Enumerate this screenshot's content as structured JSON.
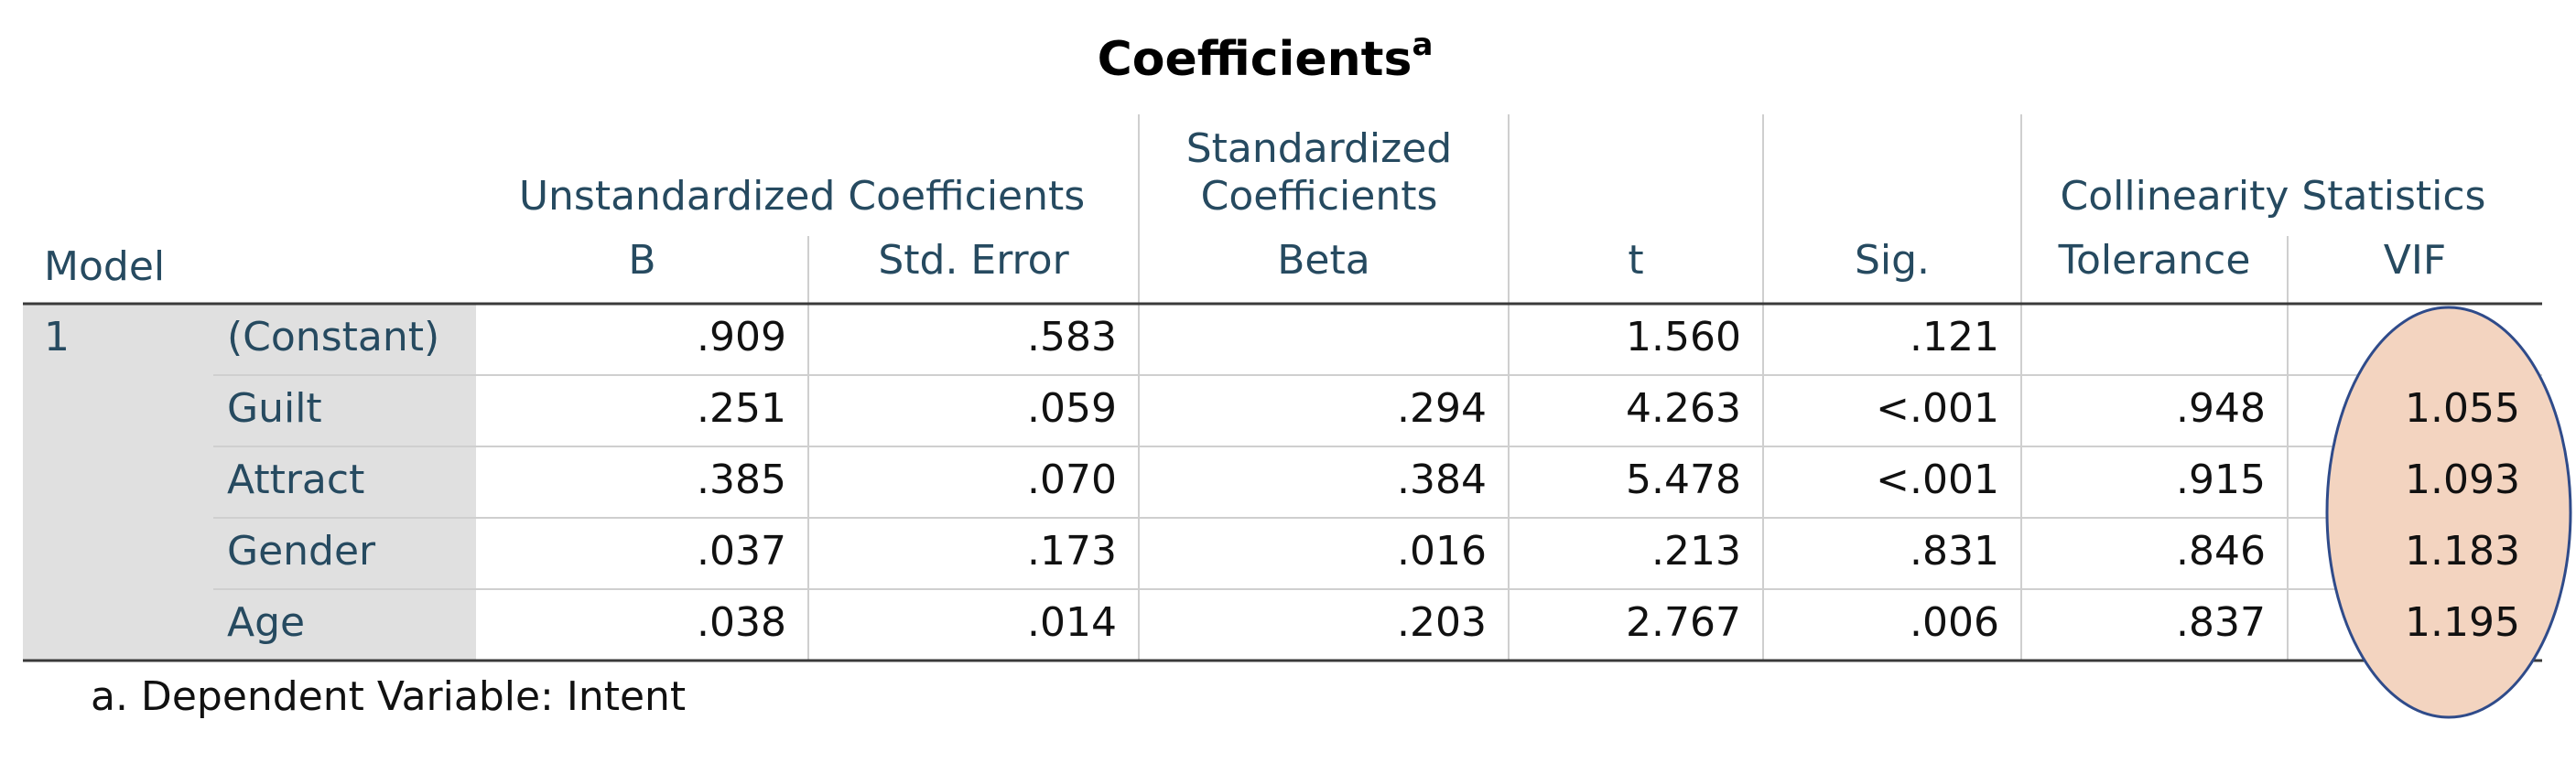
{
  "title": "Coefficients",
  "title_note": "a",
  "header": {
    "model": "Model",
    "groups": [
      {
        "lines": [
          "Unstandardized Coefficients"
        ]
      },
      {
        "lines": [
          "Standardized",
          "Coefficients"
        ]
      },
      {
        "lines": [
          "Collinearity Statistics"
        ]
      }
    ],
    "columns": [
      "B",
      "Std. Error",
      "Beta",
      "t",
      "Sig.",
      "Tolerance",
      "VIF"
    ]
  },
  "table": {
    "model": "1",
    "rows": [
      {
        "label": "(Constant)",
        "cells": [
          ".909",
          ".583",
          null,
          "1.560",
          ".121",
          null,
          null
        ]
      },
      {
        "label": "Guilt",
        "cells": [
          ".251",
          ".059",
          ".294",
          "4.263",
          "<.001",
          ".948",
          "1.055"
        ]
      },
      {
        "label": "Attract",
        "cells": [
          ".385",
          ".070",
          ".384",
          "5.478",
          "<.001",
          ".915",
          "1.093"
        ]
      },
      {
        "label": "Gender",
        "cells": [
          ".037",
          ".173",
          ".016",
          ".213",
          ".831",
          ".846",
          "1.183"
        ]
      },
      {
        "label": "Age",
        "cells": [
          ".038",
          ".014",
          ".203",
          "2.767",
          ".006",
          ".837",
          "1.195"
        ]
      }
    ]
  },
  "footnote": "a. Dependent Variable: Intent"
}
